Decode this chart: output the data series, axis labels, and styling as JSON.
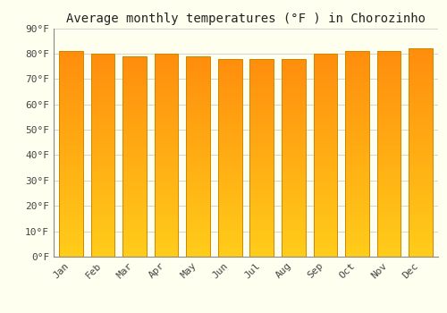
{
  "title": "Average monthly temperatures (°F ) in Chorozinho",
  "months": [
    "Jan",
    "Feb",
    "Mar",
    "Apr",
    "May",
    "Jun",
    "Jul",
    "Aug",
    "Sep",
    "Oct",
    "Nov",
    "Dec"
  ],
  "values": [
    81,
    80,
    79,
    80,
    79,
    78,
    78,
    78,
    80,
    81,
    81,
    82
  ],
  "ylim": [
    0,
    90
  ],
  "yticks": [
    0,
    10,
    20,
    30,
    40,
    50,
    60,
    70,
    80,
    90
  ],
  "ytick_labels": [
    "0°F",
    "10°F",
    "20°F",
    "30°F",
    "40°F",
    "50°F",
    "60°F",
    "70°F",
    "80°F",
    "90°F"
  ],
  "bar_color_mid": "#FFA500",
  "bar_color_bottom": "#FFCC00",
  "bar_color_top": "#FF8C00",
  "bar_edge_color": "#CC8800",
  "background_color": "#FFFFF0",
  "grid_color": "#CCCCCC",
  "title_fontsize": 10,
  "tick_fontsize": 8,
  "font_family": "monospace"
}
